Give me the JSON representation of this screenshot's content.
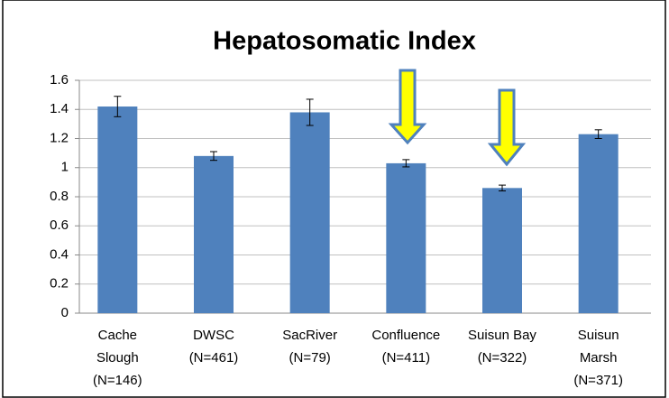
{
  "chart_data": {
    "type": "bar",
    "title": "Hepatosomatic Index",
    "categories": [
      [
        "Cache",
        "Slough",
        "(N=146)"
      ],
      [
        "DWSC",
        "(N=461)"
      ],
      [
        "SacRiver",
        "(N=79)"
      ],
      [
        "Confluence",
        "(N=411)"
      ],
      [
        "Suisun Bay",
        "(N=322)"
      ],
      [
        "Suisun",
        "Marsh",
        "(N=371)"
      ]
    ],
    "values": [
      1.42,
      1.08,
      1.38,
      1.03,
      0.86,
      1.23
    ],
    "errors": [
      0.07,
      0.03,
      0.09,
      0.025,
      0.02,
      0.03
    ],
    "color": "#4f81bd",
    "ylim": [
      0,
      1.6
    ],
    "yticks": [
      0,
      0.2,
      0.4,
      0.6,
      0.8,
      1,
      1.2,
      1.4,
      1.6
    ],
    "grid": true
  }
}
